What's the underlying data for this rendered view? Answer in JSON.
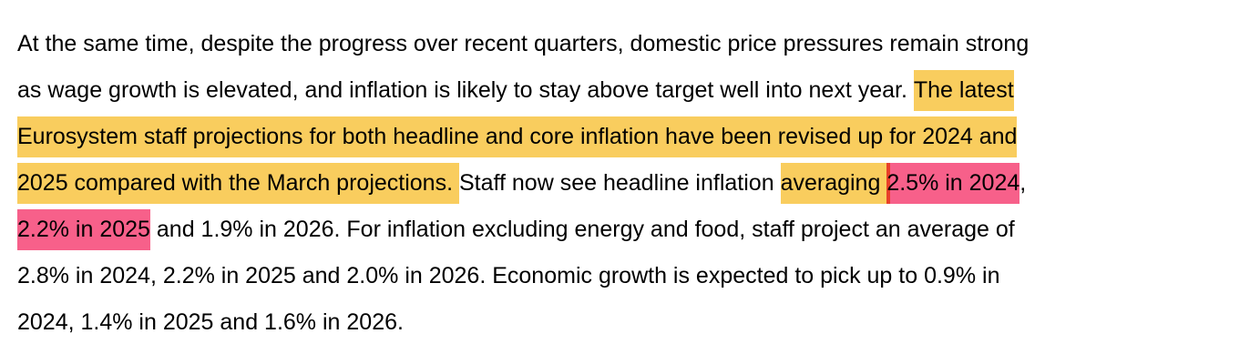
{
  "paragraph": {
    "lines": [
      {
        "segments": [
          {
            "text": "At the same time, despite the progress over recent quarters, domestic price pressures remain strong"
          }
        ]
      },
      {
        "segments": [
          {
            "text": "as wage growth is elevated, and inflation is likely to stay above target well into next year. "
          },
          {
            "text": "The latest",
            "highlight": "#f9cd5e"
          }
        ]
      },
      {
        "segments": [
          {
            "text": "Eurosystem staff projections for both headline and core inflation have been revised up for 2024 and",
            "highlight": "#f9cd5e"
          }
        ]
      },
      {
        "segments": [
          {
            "text": "2025 compared with the March projections. ",
            "highlight": "#f9cd5e"
          },
          {
            "text": "Staff now see headline inflation "
          },
          {
            "text": "averaging ",
            "highlight": "#f9cd5e"
          },
          {
            "text": "2.5% in 2024",
            "highlight": "#f7608a",
            "marker": "#e8402a"
          },
          {
            "text": ","
          }
        ]
      },
      {
        "segments": [
          {
            "text": "2.2% in 2025",
            "highlight": "#f7608a"
          },
          {
            "text": " and 1.9% in 2026. For inflation excluding energy and food, staff project an average of"
          }
        ]
      },
      {
        "segments": [
          {
            "text": "2.8% in 2024, 2.2% in 2025 and 2.0% in 2026. Economic growth is expected to pick up to 0.9% in"
          }
        ]
      },
      {
        "segments": [
          {
            "text": "2024, 1.4% in 2025 and 1.6% in 2026."
          }
        ]
      }
    ]
  }
}
